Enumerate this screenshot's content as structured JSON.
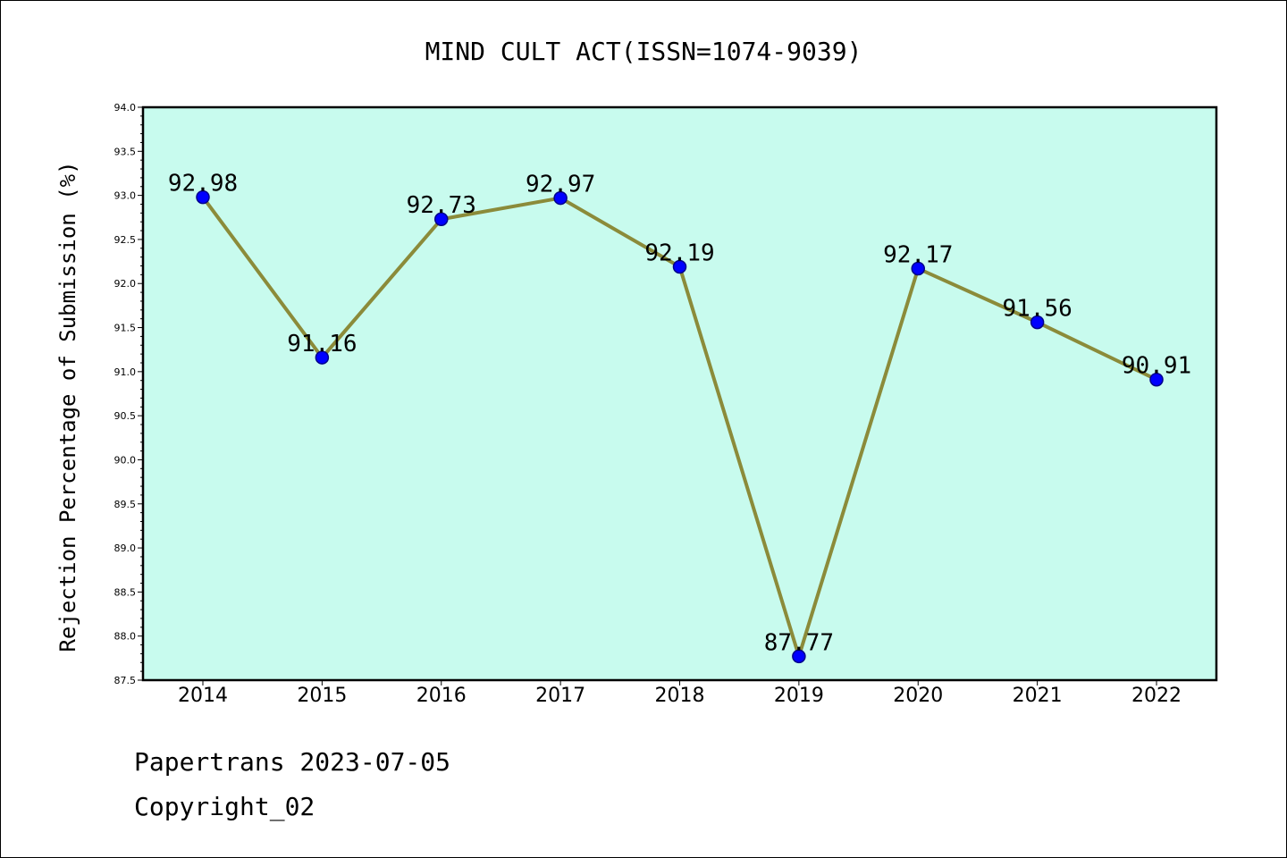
{
  "footer": {
    "line1": "Papertrans 2023-07-05",
    "line2": "Copyright_02"
  },
  "chart_data": {
    "type": "line",
    "title": "MIND CULT ACT(ISSN=1074-9039)",
    "xlabel": "",
    "ylabel": "Rejection Percentage of Submission (%)",
    "categories": [
      "2014",
      "2015",
      "2016",
      "2017",
      "2018",
      "2019",
      "2020",
      "2021",
      "2022"
    ],
    "series": [
      {
        "values": [
          92.98,
          91.16,
          92.73,
          92.97,
          92.19,
          87.77,
          92.17,
          91.56,
          90.91
        ],
        "labels": [
          "92.98",
          "91.16",
          "92.73",
          "92.97",
          "92.19",
          "87.77",
          "92.17",
          "91.56",
          "90.91"
        ]
      }
    ],
    "ylim": [
      87.5,
      94.0
    ],
    "yticks": [
      "87.5",
      "88.0",
      "88.5",
      "89.0",
      "89.5",
      "90.0",
      "90.5",
      "91.0",
      "91.5",
      "92.0",
      "92.5",
      "93.0",
      "93.5",
      "94.0"
    ],
    "grid": false,
    "legend": "none",
    "colors": {
      "plot_background": "#c8fbee",
      "line": "#8b8b3a",
      "marker_fill": "#0000ff",
      "marker_edge": "#00008b"
    }
  }
}
